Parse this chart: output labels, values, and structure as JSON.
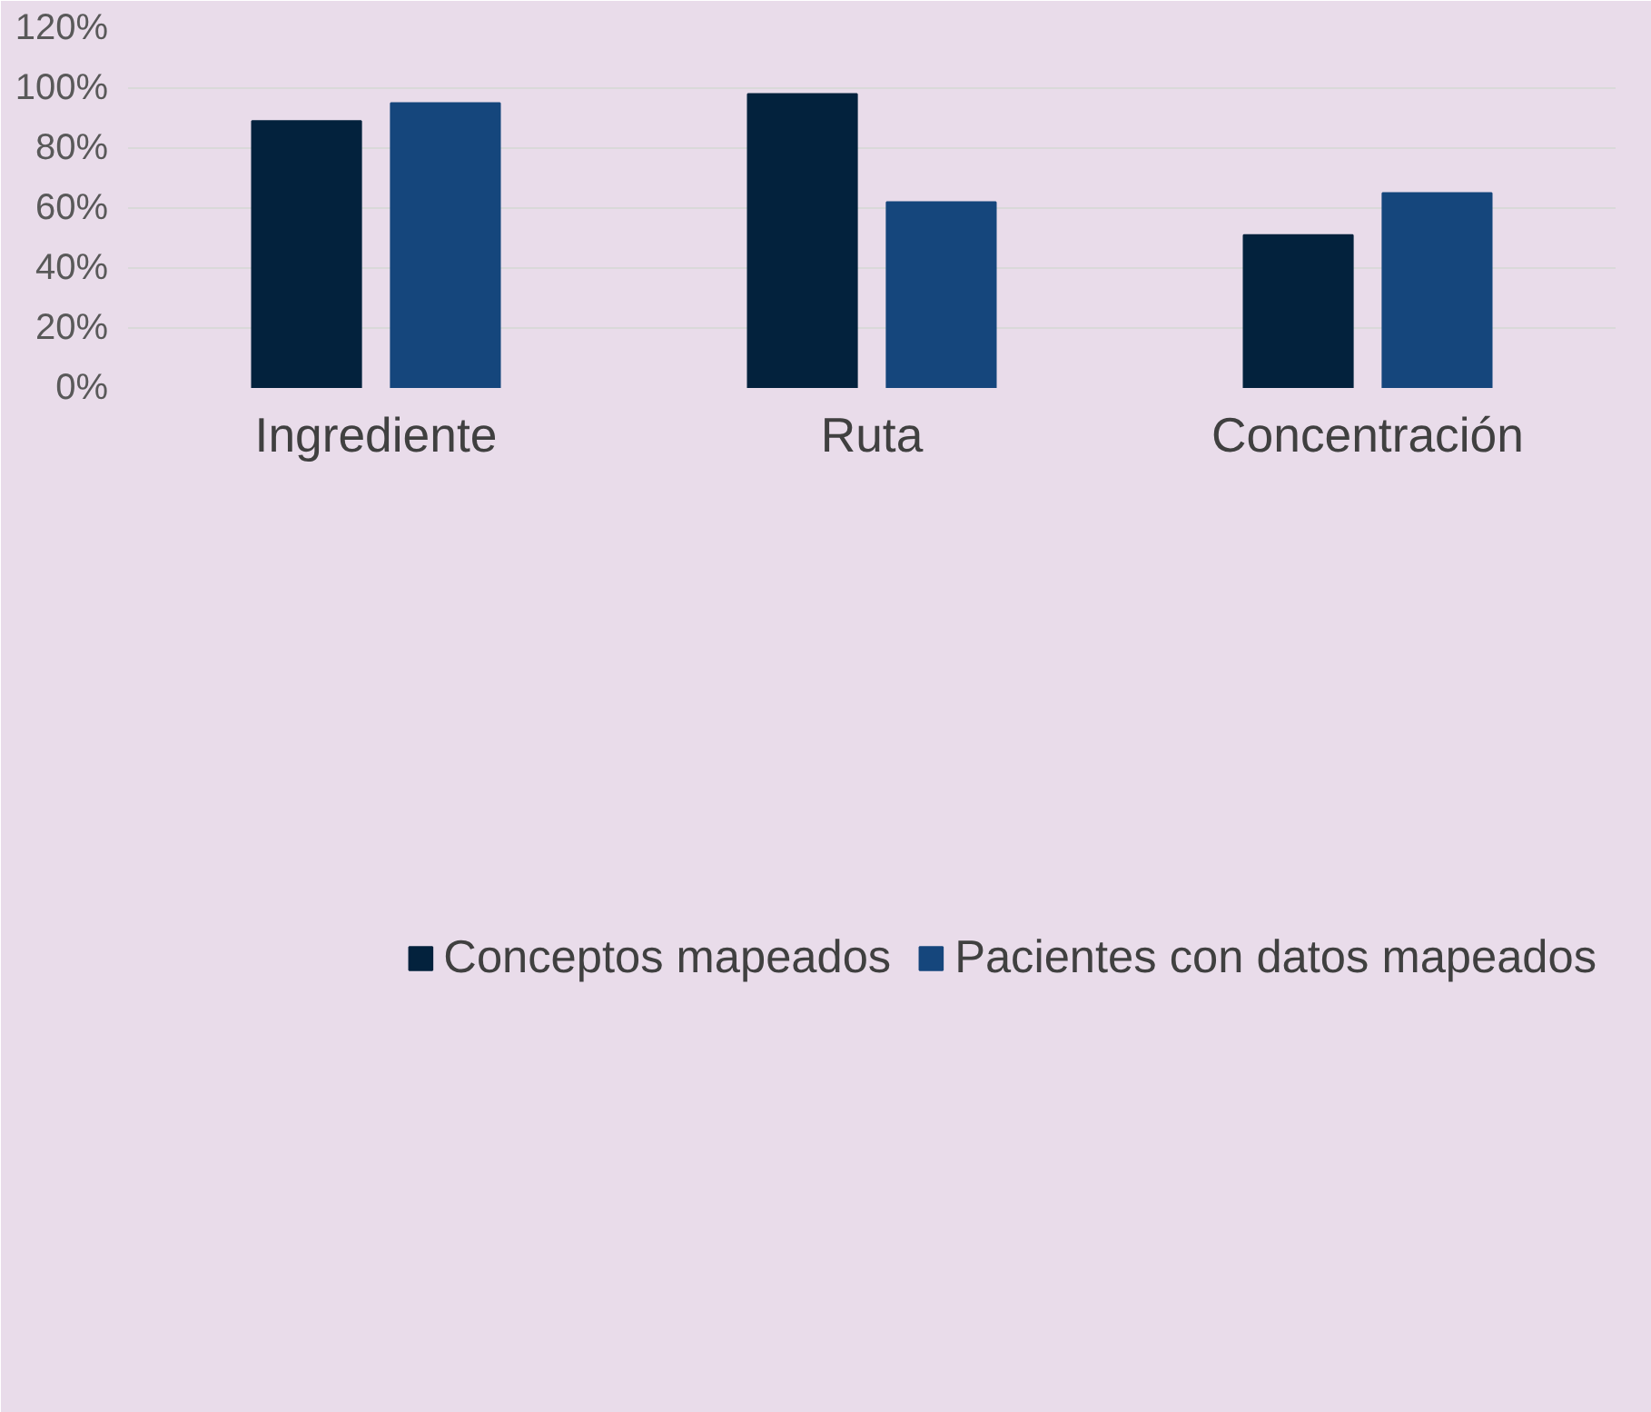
{
  "chart_data": {
    "type": "bar",
    "categories": [
      "Ingrediente",
      "Ruta",
      "Concentración"
    ],
    "series": [
      {
        "name": "Conceptos mapeados",
        "color": "#03223d",
        "values": [
          89,
          98,
          51
        ]
      },
      {
        "name": "Pacientes con datos mapeados",
        "color": "#15467c",
        "values": [
          95,
          62,
          65
        ]
      }
    ],
    "ylim": [
      0,
      120
    ],
    "yticks": [
      {
        "value": 0,
        "label": "0%"
      },
      {
        "value": 20,
        "label": "20%"
      },
      {
        "value": 40,
        "label": "40%"
      },
      {
        "value": 60,
        "label": "60%"
      },
      {
        "value": 80,
        "label": "80%"
      },
      {
        "value": 100,
        "label": "100%"
      },
      {
        "value": 120,
        "label": "120%"
      }
    ],
    "grid": "y",
    "legend": "bottom"
  }
}
